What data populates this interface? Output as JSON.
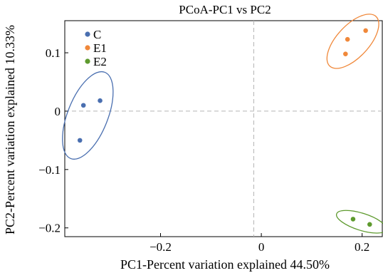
{
  "chart_data": {
    "type": "scatter",
    "title": "PCoA-PC1 vs PC2",
    "xlabel": "PC1-Percent variation explained 44.50%",
    "ylabel": "PC2-Percent variation explained 10.33%",
    "xlim": [
      -0.39,
      0.24
    ],
    "ylim": [
      -0.215,
      0.155
    ],
    "x_ticks": [
      -0.2,
      0,
      0.2
    ],
    "x_tick_labels": [
      "−0.2",
      "0",
      "0.2"
    ],
    "y_ticks": [
      0.1,
      0,
      -0.1,
      -0.2
    ],
    "y_tick_labels": [
      "0.1",
      "0",
      "−0.1",
      "−0.2"
    ],
    "reference_lines": {
      "x": -0.015,
      "y": 0
    },
    "grid": false,
    "legend_position": "top-left",
    "series": [
      {
        "name": "C",
        "color": "#4a6fb0",
        "points": [
          [
            -0.353,
            0.01
          ],
          [
            -0.32,
            0.018
          ],
          [
            -0.36,
            -0.05
          ]
        ]
      },
      {
        "name": "E1",
        "color": "#f0883a",
        "points": [
          [
            0.171,
            0.123
          ],
          [
            0.207,
            0.138
          ],
          [
            0.167,
            0.098
          ]
        ]
      },
      {
        "name": "E2",
        "color": "#5e9a2e",
        "points": [
          [
            0.182,
            -0.185
          ],
          [
            0.215,
            -0.194
          ]
        ]
      }
    ]
  }
}
